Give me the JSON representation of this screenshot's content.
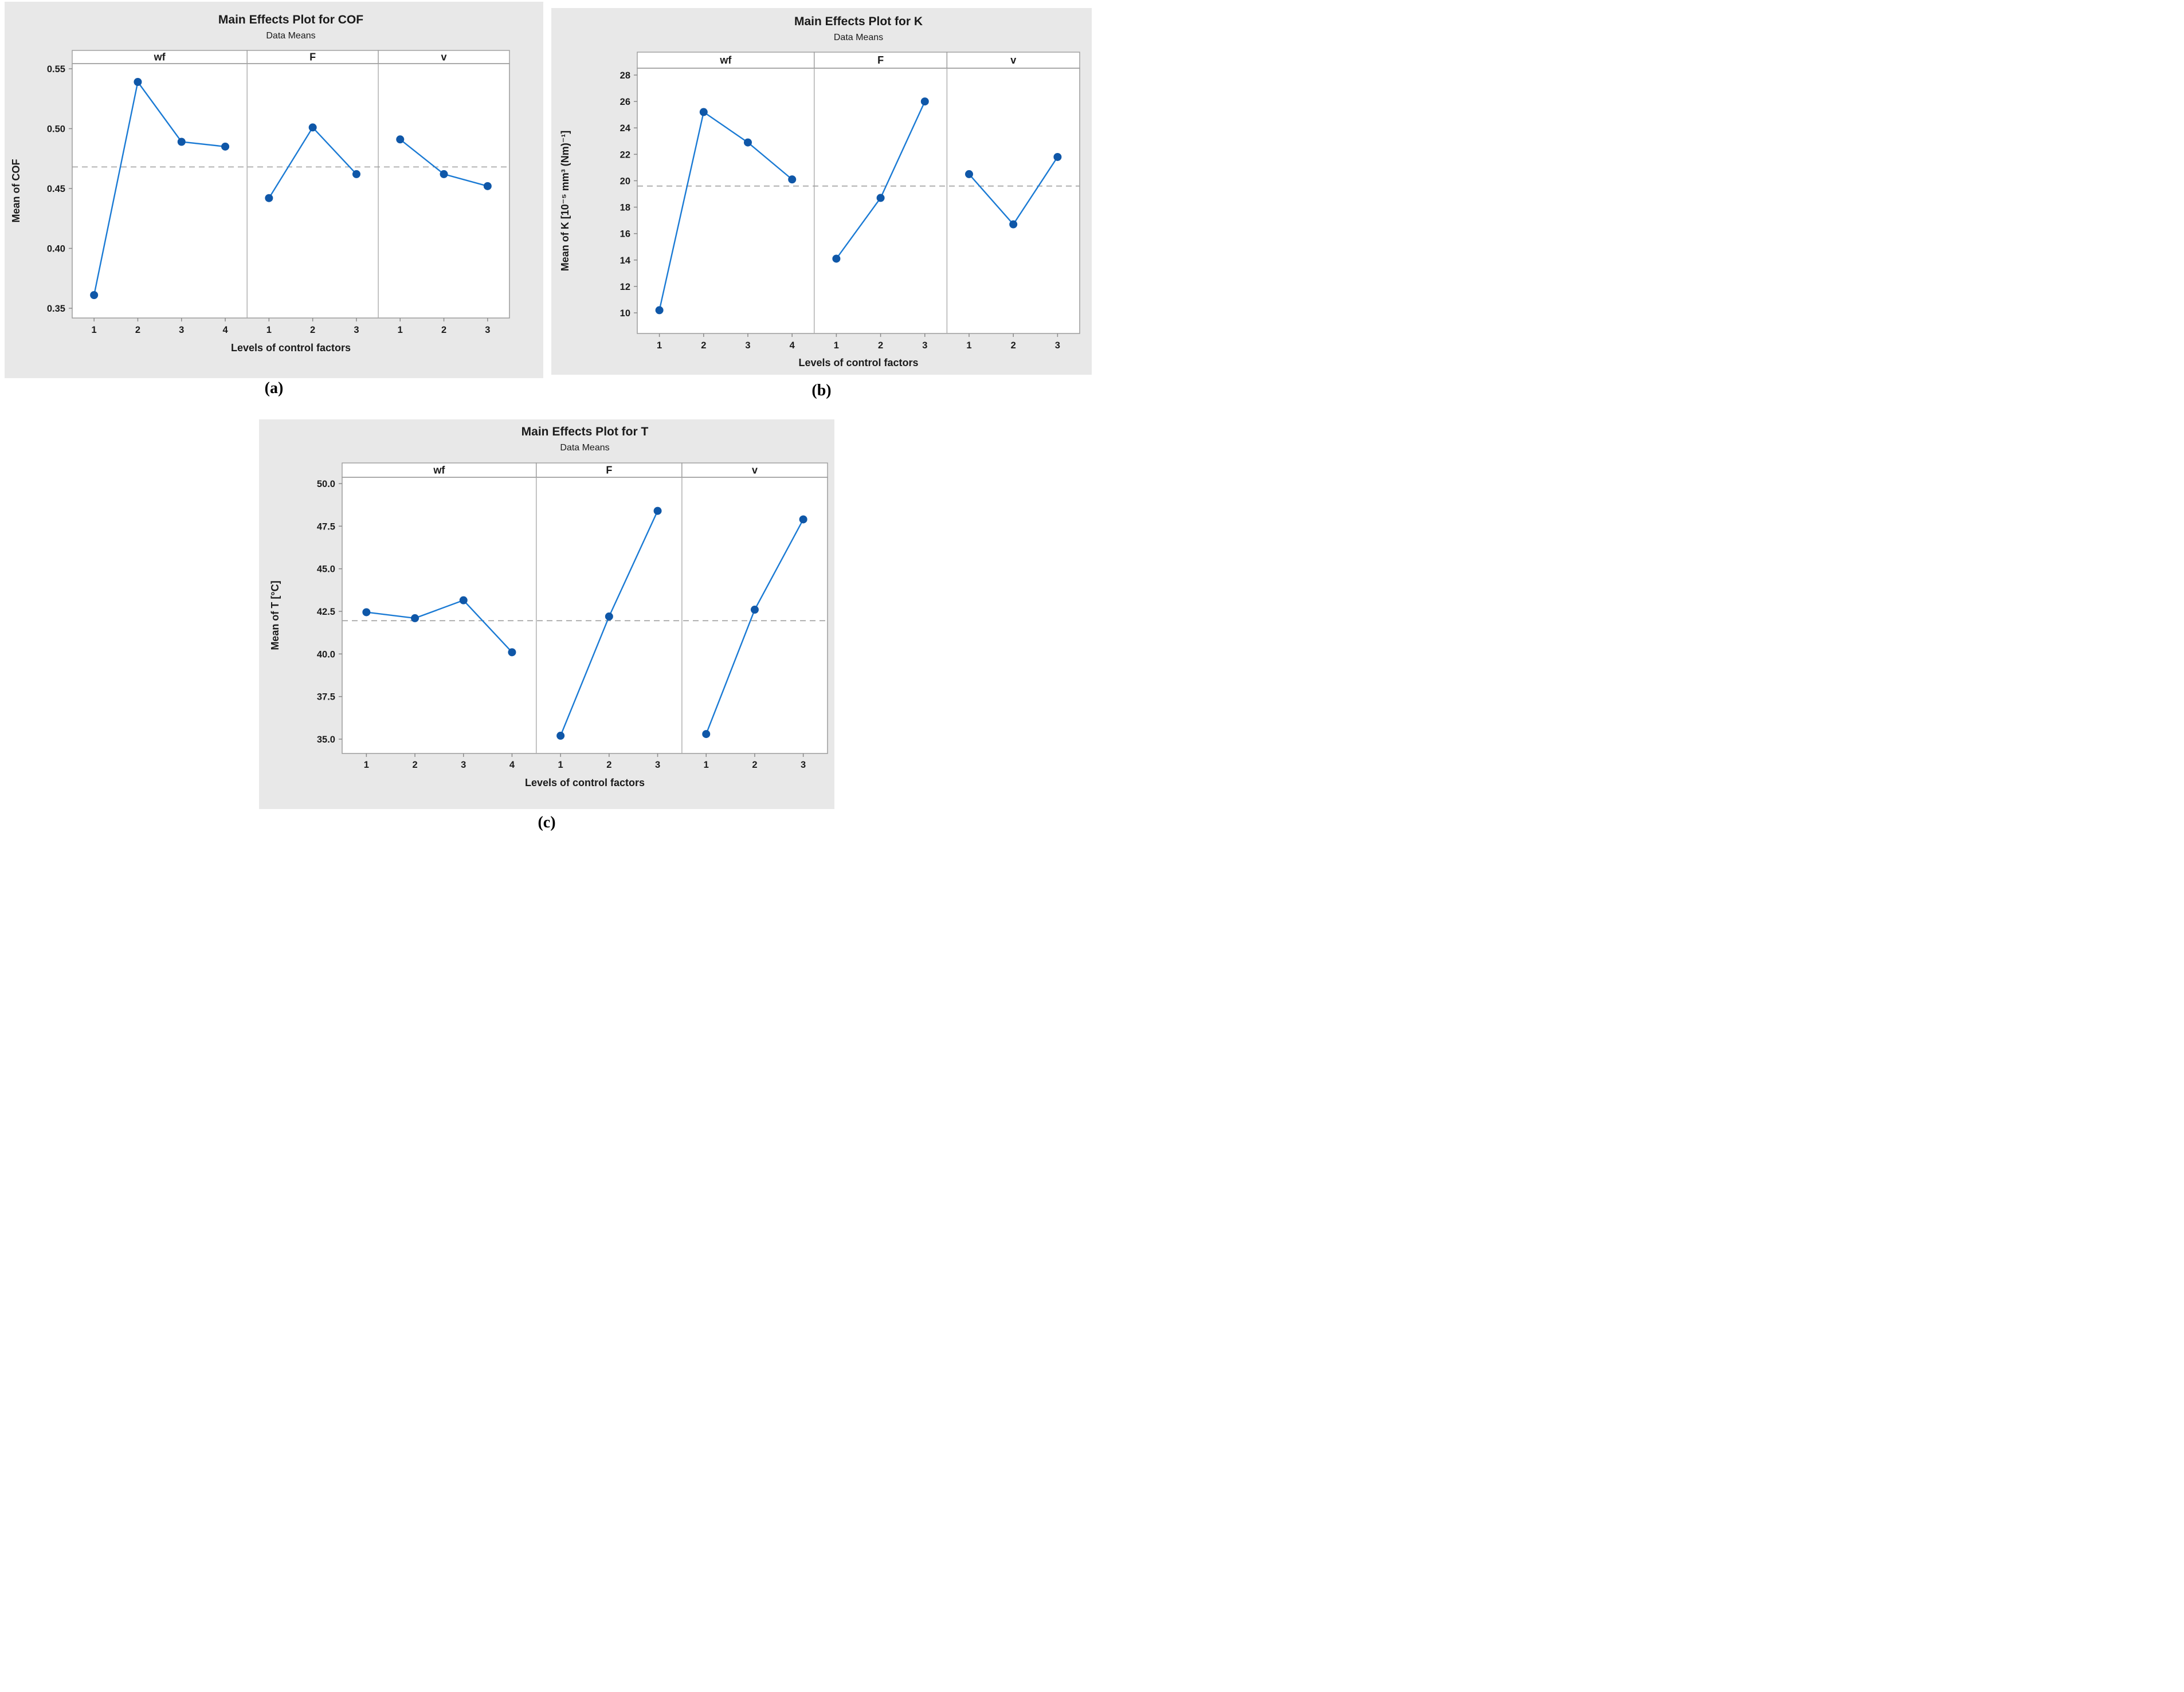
{
  "figure": {
    "captions": {
      "a": "(a)",
      "b": "(b)",
      "c": "(c)"
    }
  },
  "colors": {
    "chart_bg": "#e8e8e8",
    "plot_bg": "#ffffff",
    "border": "#9c9c9c",
    "divider": "#ababab",
    "tick": "#8a8a8a",
    "dashed": "#9e9e9e",
    "line": "#1a7ad4",
    "marker": "#0f57a8",
    "text": "#1a1a1a"
  },
  "chart_data": [
    {
      "type": "line",
      "title": "Main Effects Plot for COF",
      "subtitle": "Data Means",
      "ylabel": "Mean of COF",
      "xlabel": "Levels of control factors",
      "yticks": [
        0.35,
        0.4,
        0.45,
        0.5,
        0.55
      ],
      "ytick_labels": [
        "0.35",
        "0.40",
        "0.45",
        "0.50",
        "0.55"
      ],
      "ylim": [
        0.344,
        0.556
      ],
      "overall_mean": 0.468,
      "legend": "none",
      "grid": "off",
      "panels": [
        {
          "label": "wf",
          "levels": [
            "1",
            "2",
            "3",
            "4"
          ],
          "values": [
            0.361,
            0.539,
            0.489,
            0.485
          ]
        },
        {
          "label": "F",
          "levels": [
            "1",
            "2",
            "3"
          ],
          "values": [
            0.442,
            0.501,
            0.462
          ]
        },
        {
          "label": "v",
          "levels": [
            "1",
            "2",
            "3"
          ],
          "values": [
            0.491,
            0.462,
            0.452
          ]
        }
      ]
    },
    {
      "type": "line",
      "title": "Main Effects Plot for K",
      "subtitle": "Data Means",
      "ylabel": "Mean of K [10⁻⁵ mm³ (Nm)⁻¹]",
      "xlabel": "Levels of control factors",
      "yticks": [
        10,
        12,
        14,
        16,
        18,
        20,
        22,
        24,
        26,
        28
      ],
      "ytick_labels": [
        "10",
        "12",
        "14",
        "16",
        "18",
        "20",
        "22",
        "24",
        "26",
        "28"
      ],
      "ylim": [
        8.4,
        28.6
      ],
      "overall_mean": 19.6,
      "legend": "none",
      "grid": "off",
      "panels": [
        {
          "label": "wf",
          "levels": [
            "1",
            "2",
            "3",
            "4"
          ],
          "values": [
            10.2,
            25.2,
            22.9,
            20.1
          ]
        },
        {
          "label": "F",
          "levels": [
            "1",
            "2",
            "3"
          ],
          "values": [
            14.1,
            18.7,
            26.0
          ]
        },
        {
          "label": "v",
          "levels": [
            "1",
            "2",
            "3"
          ],
          "values": [
            20.5,
            16.7,
            21.8
          ]
        }
      ]
    },
    {
      "type": "line",
      "title": "Main Effects Plot for T",
      "subtitle": "Data Means",
      "ylabel": "Mean of T  [°C]",
      "xlabel": "Levels of control factors",
      "yticks": [
        35.0,
        37.5,
        40.0,
        42.5,
        45.0,
        47.5,
        50.0
      ],
      "ytick_labels": [
        "35.0",
        "37.5",
        "40.0",
        "42.5",
        "45.0",
        "47.5",
        "50.0"
      ],
      "ylim": [
        34.2,
        50.4
      ],
      "overall_mean": 41.95,
      "legend": "none",
      "grid": "off",
      "panels": [
        {
          "label": "wf",
          "levels": [
            "1",
            "2",
            "3",
            "4"
          ],
          "values": [
            42.45,
            42.1,
            43.15,
            40.1
          ]
        },
        {
          "label": "F",
          "levels": [
            "1",
            "2",
            "3"
          ],
          "values": [
            35.2,
            42.2,
            48.4
          ]
        },
        {
          "label": "v",
          "levels": [
            "1",
            "2",
            "3"
          ],
          "values": [
            35.3,
            42.6,
            47.9
          ]
        }
      ]
    }
  ]
}
